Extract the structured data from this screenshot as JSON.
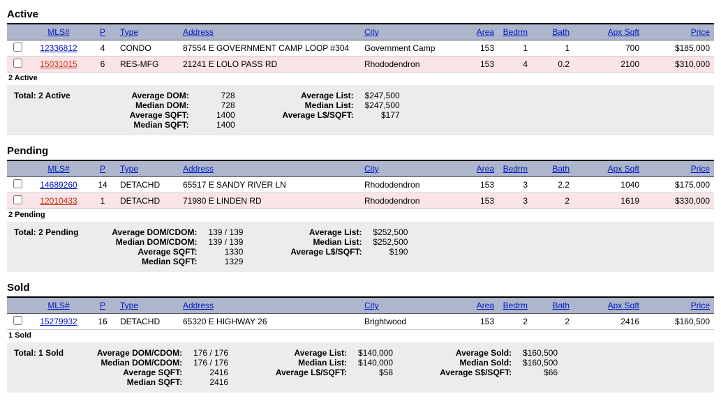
{
  "columns": {
    "mls": "MLS#",
    "p": "P",
    "type": "Type",
    "address": "Address",
    "city": "City",
    "area": "Area",
    "bedrm": "Bedrm",
    "bath": "Bath",
    "apx_sqft": "Apx Sqft",
    "price": "Price"
  },
  "sections": [
    {
      "title": "Active",
      "count_line": "2 Active",
      "rows": [
        {
          "mls": "12336812",
          "mls_color": "blue",
          "p": "4",
          "type": "CONDO",
          "address": "87554 E GOVERNMENT CAMP LOOP #304",
          "city": "Government Camp",
          "area": "153",
          "bedrm": "1",
          "bath": "1",
          "sqft": "700",
          "price": "$185,000"
        },
        {
          "mls": "15031015",
          "mls_color": "red",
          "p": "6",
          "type": "RES-MFG",
          "address": "21241 E LOLO PASS RD",
          "city": "Rhododendron",
          "area": "153",
          "bedrm": "4",
          "bath": "0.2",
          "sqft": "2100",
          "price": "$310,000"
        }
      ],
      "total_label": "Total:  2 Active",
      "stat_groups": [
        [
          {
            "label": "Average DOM:",
            "value": "728"
          },
          {
            "label": "Median DOM:",
            "value": "728"
          },
          {
            "label": "Average SQFT:",
            "value": "1400"
          },
          {
            "label": "Median SQFT:",
            "value": "1400"
          }
        ],
        [
          {
            "label": "Average List:",
            "value": "$247,500"
          },
          {
            "label": "Median List:",
            "value": "$247,500"
          },
          {
            "label": "Average L$/SQFT:",
            "value": "$177"
          }
        ]
      ]
    },
    {
      "title": "Pending",
      "count_line": "2 Pending",
      "rows": [
        {
          "mls": "14689260",
          "mls_color": "blue",
          "p": "14",
          "type": "DETACHD",
          "address": "65517 E SANDY RIVER LN",
          "city": "Rhododendron",
          "area": "153",
          "bedrm": "3",
          "bath": "2.2",
          "sqft": "1040",
          "price": "$175,000"
        },
        {
          "mls": "12010433",
          "mls_color": "red",
          "p": "1",
          "type": "DETACHD",
          "address": "71980 E LINDEN RD",
          "city": "Rhododendron",
          "area": "153",
          "bedrm": "3",
          "bath": "2",
          "sqft": "1619",
          "price": "$330,000"
        }
      ],
      "total_label": "Total:  2 Pending",
      "stat_groups": [
        [
          {
            "label": "Average DOM/CDOM:",
            "value": "139 / 139"
          },
          {
            "label": "Median DOM/CDOM:",
            "value": "139 / 139"
          },
          {
            "label": "Average SQFT:",
            "value": "1330"
          },
          {
            "label": "Median SQFT:",
            "value": "1329"
          }
        ],
        [
          {
            "label": "Average List:",
            "value": "$252,500"
          },
          {
            "label": "Median List:",
            "value": "$252,500"
          },
          {
            "label": "Average L$/SQFT:",
            "value": "$190"
          }
        ]
      ]
    },
    {
      "title": "Sold",
      "count_line": "1 Sold",
      "rows": [
        {
          "mls": "15279932",
          "mls_color": "blue",
          "p": "16",
          "type": "DETACHD",
          "address": "65320 E HIGHWAY 26",
          "city": "Brightwood",
          "area": "153",
          "bedrm": "2",
          "bath": "2",
          "sqft": "2416",
          "price": "$160,500"
        }
      ],
      "total_label": "Total:  1 Sold",
      "stat_groups": [
        [
          {
            "label": "Average DOM/CDOM:",
            "value": "176 / 176"
          },
          {
            "label": "Median DOM/CDOM:",
            "value": "176 / 176"
          },
          {
            "label": "Average SQFT:",
            "value": "2416"
          },
          {
            "label": "Median SQFT:",
            "value": "2416"
          }
        ],
        [
          {
            "label": "Average List:",
            "value": "$140,000"
          },
          {
            "label": "Median List:",
            "value": "$140,000"
          },
          {
            "label": "Average L$/SQFT:",
            "value": "$58"
          }
        ],
        [
          {
            "label": "Average Sold:",
            "value": "$160,500"
          },
          {
            "label": "Median Sold:",
            "value": "$160,500"
          },
          {
            "label": "Average S$/SQFT:",
            "value": "$66"
          }
        ]
      ]
    }
  ],
  "col_widths": {
    "checkbox": "30px",
    "mls": "88px",
    "p": "38px",
    "type": "90px",
    "address": "260px",
    "city": "150px",
    "area": "48px",
    "bedrm": "48px",
    "bath": "60px",
    "sqft": "100px",
    "price": "101px"
  },
  "colors": {
    "header_bg": "#aeb6cc",
    "row_odd_bg": "#fbe4e7",
    "stats_bg": "#ececec",
    "link_blue": "#0019c2",
    "link_red": "#c22e0e"
  }
}
